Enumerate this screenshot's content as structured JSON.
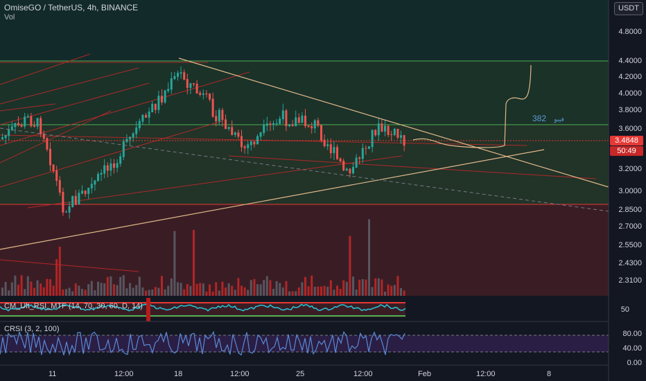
{
  "header": {
    "symbol_line": "OmiseGO / TetherUS, 4h, BINANCE",
    "volume_label": "Vol"
  },
  "currency_button": "USDT",
  "price_axis": [
    "4.8000",
    "4.4000",
    "4.2000",
    "4.0000",
    "3.8000",
    "3.6000",
    "3.2000",
    "3.0000",
    "2.8500",
    "2.7000",
    "2.5500",
    "2.4300",
    "2.3100"
  ],
  "current_price": "3.4848",
  "countdown": "50:49",
  "time_axis": [
    "11",
    "12:00",
    "18",
    "12:00",
    "25",
    "12:00",
    "Feb",
    "12:00",
    "8"
  ],
  "annotation": {
    "number": "382",
    "arabic": "فيبو"
  },
  "indicator1": {
    "label": "CM_Ult_RSI_MTF (14, 70, 30, 60, D, 14)",
    "axis": [
      "50"
    ]
  },
  "indicator2": {
    "label": "CRSI (3, 2, 100)",
    "axis": [
      "80.00",
      "40.00",
      "0.00"
    ]
  },
  "colors": {
    "bg": "#131722",
    "up": "#26a69a",
    "down": "#ef5350",
    "trendline": "#e0b98a",
    "band_top": "#1f3b34",
    "band_mid": "#2a3a33",
    "band_low": "#3b1f25"
  }
}
